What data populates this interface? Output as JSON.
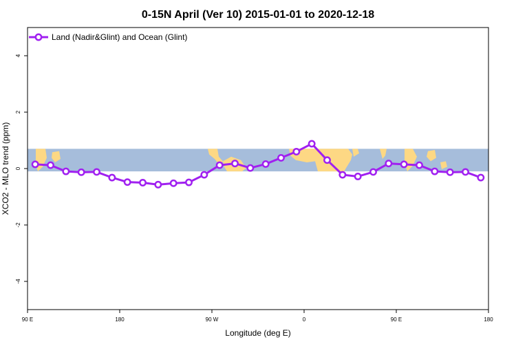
{
  "chart_data": {
    "type": "line",
    "title": "0-15N April (Ver 10)   2015-01-01 to 2020-12-18",
    "xlabel": "Longitude (deg E)",
    "ylabel": "XCO2 - MLO trend (ppm)",
    "xlim": [
      90,
      450
    ],
    "ylim": [
      -5,
      5
    ],
    "x_ticks": [
      {
        "value": 90,
        "label": "90 E"
      },
      {
        "value": 162,
        "label": "180"
      },
      {
        "value": 234,
        "label": "90 W"
      },
      {
        "value": 306,
        "label": "0"
      },
      {
        "value": 378,
        "label": "90 E"
      },
      {
        "value": 450,
        "label": "180"
      }
    ],
    "y_ticks": [
      {
        "value": 4,
        "label": "4"
      },
      {
        "value": 2,
        "label": "2"
      },
      {
        "value": 0,
        "label": "0"
      },
      {
        "value": -2,
        "label": "-2"
      },
      {
        "value": -4,
        "label": "-4"
      }
    ],
    "band": {
      "ymin": -0.1,
      "ymax": 0.7
    },
    "colors": {
      "line": "#a020f0",
      "ocean": "#a6bddb",
      "land": "#fdd884",
      "marker_fill": "#ffffff"
    },
    "legend": {
      "position": "top-left",
      "label": "Land (Nadir&Glint) and Ocean (Glint)"
    },
    "series": [
      {
        "name": "Land (Nadir&Glint) and Ocean (Glint)",
        "x": [
          96,
          108,
          120,
          132,
          144,
          156,
          168,
          180,
          192,
          204,
          216,
          228,
          240,
          252,
          264,
          276,
          288,
          300,
          312,
          324,
          336,
          348,
          360,
          372,
          384,
          396,
          408,
          420,
          432,
          444
        ],
        "y": [
          0.15,
          0.12,
          -0.1,
          -0.13,
          -0.12,
          -0.32,
          -0.48,
          -0.5,
          -0.57,
          -0.52,
          -0.49,
          -0.22,
          0.12,
          0.18,
          0.02,
          0.16,
          0.38,
          0.6,
          0.88,
          0.3,
          -0.22,
          -0.28,
          -0.12,
          0.18,
          0.15,
          0.12,
          -0.1,
          -0.13,
          -0.12,
          -0.32
        ]
      }
    ]
  }
}
